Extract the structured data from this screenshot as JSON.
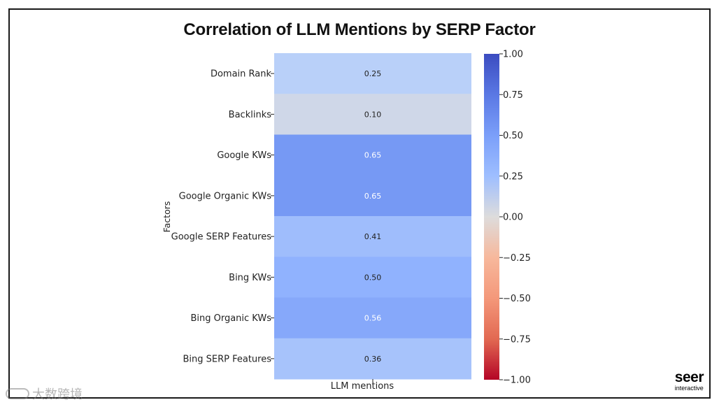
{
  "chart_data": {
    "type": "heatmap",
    "title": "Correlation of LLM Mentions by SERP Factor",
    "ylabel": "Factors",
    "xlabel": "",
    "x_categories": [
      "LLM mentions"
    ],
    "y_categories": [
      "Domain Rank",
      "Backlinks",
      "Google KWs",
      "Google Organic KWs",
      "Google SERP Features",
      "Bing KWs",
      "Bing Organic KWs",
      "Bing SERP Features"
    ],
    "values": [
      0.25,
      0.1,
      0.65,
      0.65,
      0.41,
      0.5,
      0.56,
      0.36
    ],
    "value_labels": [
      "0.25",
      "0.10",
      "0.65",
      "0.65",
      "0.41",
      "0.50",
      "0.56",
      "0.36"
    ],
    "colormap": "coolwarm",
    "vmin": -1.0,
    "vmax": 1.0,
    "colorbar_ticks": [
      1.0,
      0.75,
      0.5,
      0.25,
      0.0,
      -0.25,
      -0.5,
      -0.75,
      -1.0
    ],
    "colorbar_tick_labels": [
      "1.00",
      "0.75",
      "0.50",
      "0.25",
      "0.00",
      "−0.25",
      "−0.50",
      "−0.75",
      "−1.00"
    ],
    "colors": {
      "low": "#b40426",
      "mid": "#dddcdc",
      "high": "#3b4cc0",
      "text_light": "#ffffff",
      "text_dark": "#222222"
    }
  },
  "brand": {
    "name": "seer",
    "sub": "interactive"
  },
  "watermark": {
    "text": "大数跨境"
  }
}
